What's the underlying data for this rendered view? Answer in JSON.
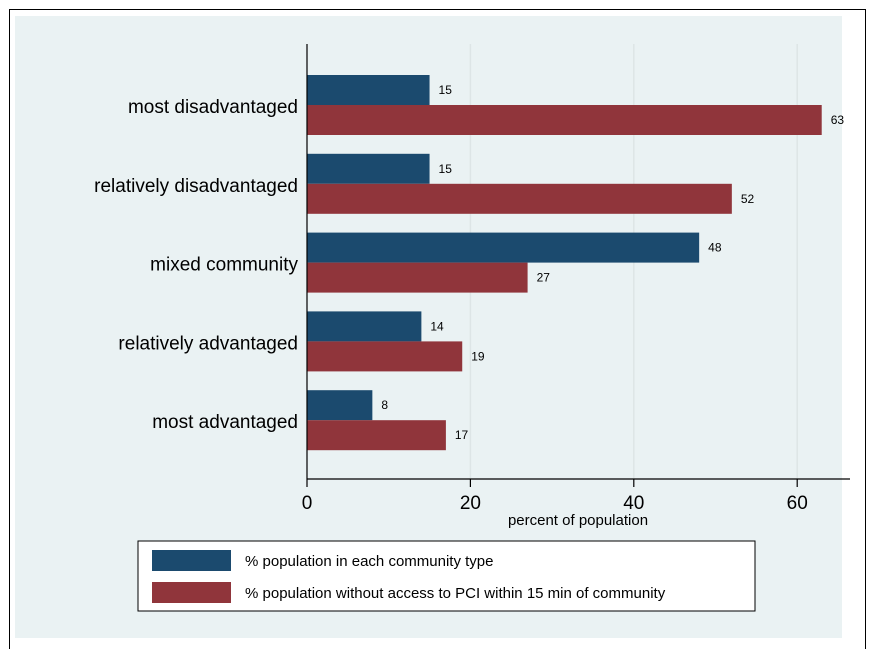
{
  "chart_data": {
    "type": "bar",
    "orientation": "horizontal",
    "categories": [
      "most disadvantaged",
      "relatively disadvantaged",
      "mixed community",
      "relatively advantaged",
      "most advantaged"
    ],
    "series": [
      {
        "name": "% population in each community type",
        "values": [
          15,
          15,
          48,
          14,
          8
        ],
        "color": "#1b4a6e"
      },
      {
        "name": "% population without access to PCI within 15 min of community",
        "values": [
          63,
          52,
          27,
          19,
          17
        ],
        "color": "#90353b"
      }
    ],
    "xlabel": "percent of population",
    "ylabel": "",
    "xlim": [
      0,
      66
    ],
    "xticks": [
      0,
      20,
      40,
      60
    ],
    "grid": true,
    "legend_position": "bottom",
    "background": "#eaf2f3"
  }
}
